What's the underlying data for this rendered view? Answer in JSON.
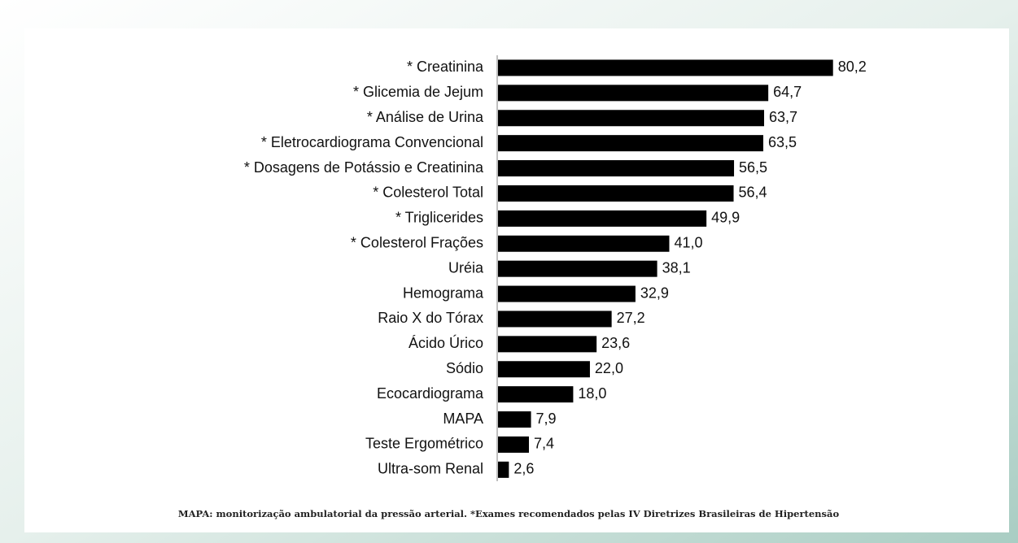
{
  "chart_data": {
    "type": "bar",
    "orientation": "horizontal",
    "categories": [
      "* Creatinina",
      "* Glicemia de Jejum",
      "* Análise de Urina",
      "* Eletrocardiograma Convencional",
      "* Dosagens de Potássio e Creatinina",
      "* Colesterol Total",
      "* Triglicerides",
      "* Colesterol Frações",
      "Uréia",
      "Hemograma",
      "Raio X do Tórax",
      "Ácido Úrico",
      "Sódio",
      "Ecocardiograma",
      "MAPA",
      "Teste Ergométrico",
      "Ultra-som Renal"
    ],
    "values": [
      80.2,
      64.7,
      63.7,
      63.5,
      56.5,
      56.4,
      49.9,
      41.0,
      38.1,
      32.9,
      27.2,
      23.6,
      22.0,
      18.0,
      7.9,
      7.4,
      2.6
    ],
    "value_labels": [
      "80,2",
      "64,7",
      "63,7",
      "63,5",
      "56,5",
      "56,4",
      "49,9",
      "41,0",
      "38,1",
      "32,9",
      "27,2",
      "23,6",
      "22,0",
      "18,0",
      "7,9",
      "7,4",
      "2,6"
    ],
    "color": "#000000",
    "xlim": [
      0,
      90
    ],
    "footnote": "MAPA: monitorização ambulatorial da pressão arterial. *Exames recomendados pelas IV Diretrizes Brasileiras de Hipertensão"
  }
}
